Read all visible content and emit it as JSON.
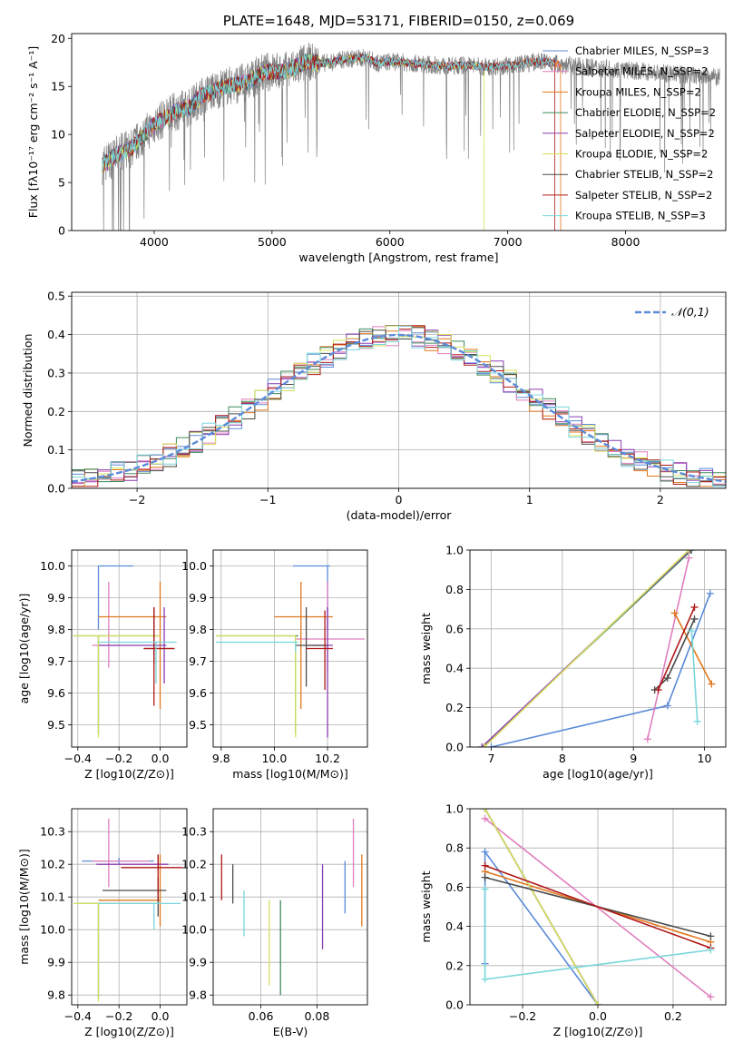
{
  "colors": {
    "miles_chabrier": "#5b8bd9",
    "miles_salpeter": "#e07fbf",
    "miles_kroupa": "#e1771c",
    "elodie_chabrier": "#3d8a5a",
    "elodie_salpeter": "#8a3db4",
    "elodie_kroupa": "#d6e05a",
    "stelib_chabrier": "#4c4c4c",
    "stelib_salpeter": "#b01818",
    "stelib_kroupa": "#7ad6dc",
    "data": "#7f7f7f",
    "normal": "#5b8bd9"
  },
  "chart_data": [
    {
      "id": "spectrum",
      "type": "line",
      "title": "PLATE=1648, MJD=53171, FIBERID=0150, z=0.069",
      "xlabel": "wavelength [Angstrom, rest frame]",
      "ylabel": "Flux [fλ10⁻¹⁷ erg cm⁻² s⁻¹ A⁻¹]",
      "xlim": [
        3300,
        8850
      ],
      "ylim": [
        0,
        20.5
      ],
      "xticks": [
        "4000",
        "5000",
        "6000",
        "7000",
        "8000"
      ],
      "yticks": [
        "0",
        "5",
        "10",
        "15",
        "20"
      ],
      "legend": "upper right",
      "legend_entries": [
        "Chabrier MILES, N_SSP=3",
        "Salpeter MILES, N_SSP=2",
        "Kroupa MILES, N_SSP=2",
        "Chabrier ELODIE, N_SSP=2",
        "Salpeter ELODIE, N_SSP=2",
        "Kroupa ELODIE, N_SSP=2",
        "Chabrier STELIB, N_SSP=2",
        "Salpeter STELIB, N_SSP=2",
        "Kroupa STELIB, N_SSP=3"
      ],
      "envelope": {
        "x": [
          3560,
          3600,
          3700,
          3800,
          3900,
          4000,
          4100,
          4200,
          4300,
          4400,
          4500,
          4600,
          4700,
          4800,
          4900,
          5000,
          5100,
          5200,
          5300,
          5400,
          5500,
          5600,
          5700,
          5800,
          5900,
          6000,
          6100,
          6200,
          6300,
          6400,
          6500,
          6600,
          6700,
          6800,
          6900,
          7000,
          7100,
          7200,
          7300,
          7400,
          7500,
          7600,
          7700,
          7800,
          7900,
          8000,
          8100,
          8200,
          8300,
          8400,
          8500,
          8600,
          8700,
          8800
        ],
        "y": [
          6.8,
          7.2,
          8.0,
          8.5,
          9.8,
          11.0,
          11.8,
          12.5,
          12.8,
          14.0,
          14.5,
          15.0,
          15.2,
          15.5,
          16.3,
          16.6,
          16.5,
          17.0,
          17.6,
          17.4,
          17.5,
          17.8,
          17.9,
          18.0,
          17.4,
          17.6,
          17.5,
          17.4,
          17.3,
          17.2,
          17.1,
          17.2,
          17.2,
          17.0,
          17.1,
          17.2,
          17.3,
          17.5,
          17.6,
          17.4,
          17.2,
          17.1,
          17.0,
          16.9,
          16.8,
          16.7,
          16.6,
          16.5,
          16.4,
          16.3,
          16.2,
          16.1,
          16.0,
          15.9
        ]
      }
    },
    {
      "id": "residuals",
      "type": "step",
      "xlabel": "(data-model)/error",
      "ylabel": "Normed distribution",
      "xlim": [
        -2.5,
        2.5
      ],
      "ylim": [
        0,
        0.51
      ],
      "xticks": [
        "−2",
        "−1",
        "0",
        "1",
        "2"
      ],
      "yticks": [
        "0.0",
        "0.1",
        "0.2",
        "0.3",
        "0.4",
        "0.5"
      ],
      "legend": "upper right",
      "normal_label": "𝒩(0,1)",
      "bin_width": 0.1,
      "bins_start": -2.5
    },
    {
      "id": "age_vs_Z",
      "type": "errorbar",
      "xlabel": "Z [log10(Z/Z⊙)]",
      "ylabel": "age [log10(age/yr)]",
      "xlim": [
        -0.43,
        0.13
      ],
      "ylim": [
        9.43,
        10.05
      ],
      "xticks": [
        "−0.4",
        "−0.2",
        "0.0"
      ],
      "yticks": [
        "9.5",
        "9.6",
        "9.7",
        "9.8",
        "9.9",
        "10.0"
      ],
      "points": [
        {
          "x": -0.3,
          "y": 10.0,
          "xerr": [
            0.0,
            0.17
          ],
          "yerr": [
            0.2,
            0.0
          ],
          "c": "miles_chabrier"
        },
        {
          "x": -0.25,
          "y": 9.75,
          "xerr": [
            0.08,
            0.05
          ],
          "yerr": [
            0.07,
            0.2
          ],
          "c": "miles_salpeter"
        },
        {
          "x": 0.0,
          "y": 9.84,
          "xerr": [
            0.3,
            0.03
          ],
          "yerr": [
            0.29,
            0.11
          ],
          "c": "miles_kroupa"
        },
        {
          "x": -0.3,
          "y": 9.78,
          "xerr": [
            0.12,
            0.29
          ],
          "yerr": [
            0.31,
            0.0
          ],
          "c": "elodie_chabrier"
        },
        {
          "x": 0.02,
          "y": 9.75,
          "xerr": [
            0.32,
            0.01
          ],
          "yerr": [
            0.12,
            0.12
          ],
          "c": "elodie_salpeter"
        },
        {
          "x": -0.3,
          "y": 9.78,
          "xerr": [
            0.12,
            0.3
          ],
          "yerr": [
            0.32,
            0.0
          ],
          "c": "elodie_kroupa"
        },
        {
          "x": -0.03,
          "y": 9.74,
          "xerr": [
            0.05,
            0.1
          ],
          "yerr": [
            0.05,
            0.13
          ],
          "c": "stelib_chabrier"
        },
        {
          "x": -0.03,
          "y": 9.74,
          "xerr": [
            0.05,
            0.1
          ],
          "yerr": [
            0.18,
            0.13
          ],
          "c": "stelib_salpeter"
        },
        {
          "x": -0.02,
          "y": 9.76,
          "xerr": [
            0.28,
            0.1
          ],
          "yerr": [
            0.13,
            0.0
          ],
          "c": "stelib_kroupa"
        }
      ]
    },
    {
      "id": "age_vs_mass",
      "type": "errorbar",
      "xlabel": "mass [log10(M/M⊙)]",
      "ylabel": "",
      "xlim": [
        9.77,
        10.35
      ],
      "ylim": [
        9.43,
        10.05
      ],
      "xticks": [
        "9.8",
        "10.0",
        "10.2"
      ],
      "yticks": [
        "9.5",
        "9.6",
        "9.7",
        "9.8",
        "9.9",
        "10.0"
      ],
      "points": [
        {
          "x": 10.2,
          "y": 10.0,
          "xerr": [
            0.13,
            0.01
          ],
          "yerr": [
            0.2,
            0.0
          ],
          "c": "miles_chabrier"
        },
        {
          "x": 10.2,
          "y": 9.77,
          "xerr": [
            0.12,
            0.14
          ],
          "yerr": [
            0.1,
            0.18
          ],
          "c": "miles_salpeter"
        },
        {
          "x": 10.1,
          "y": 9.84,
          "xerr": [
            0.1,
            0.12
          ],
          "yerr": [
            0.29,
            0.11
          ],
          "c": "miles_kroupa"
        },
        {
          "x": 10.08,
          "y": 9.78,
          "xerr": [
            0.3,
            0.01
          ],
          "yerr": [
            0.31,
            0.0
          ],
          "c": "elodie_chabrier"
        },
        {
          "x": 10.2,
          "y": 9.75,
          "xerr": [
            0.07,
            0.02
          ],
          "yerr": [
            0.29,
            0.12
          ],
          "c": "elodie_salpeter"
        },
        {
          "x": 10.08,
          "y": 9.78,
          "xerr": [
            0.3,
            0.0
          ],
          "yerr": [
            0.32,
            0.0
          ],
          "c": "elodie_kroupa"
        },
        {
          "x": 10.12,
          "y": 9.75,
          "xerr": [
            0.04,
            0.08
          ],
          "yerr": [
            0.13,
            0.12
          ],
          "c": "stelib_chabrier"
        },
        {
          "x": 10.19,
          "y": 9.74,
          "xerr": [
            0.07,
            0.03
          ],
          "yerr": [
            0.13,
            0.12
          ],
          "c": "stelib_salpeter"
        },
        {
          "x": 10.08,
          "y": 9.76,
          "xerr": [
            0.3,
            0.01
          ],
          "yerr": [
            0.03,
            0.0
          ],
          "c": "stelib_kroupa"
        }
      ]
    },
    {
      "id": "mw_vs_age",
      "type": "line",
      "xlabel": "age [log10(age/yr)]",
      "ylabel": "mass weight",
      "xlim": [
        6.7,
        10.3
      ],
      "ylim": [
        0,
        1.0
      ],
      "xticks": [
        "7",
        "8",
        "9",
        "10"
      ],
      "yticks": [
        "0.0",
        "0.2",
        "0.4",
        "0.6",
        "0.8",
        "1.0"
      ],
      "series": [
        {
          "c": "miles_chabrier",
          "x": [
            7.0,
            9.48,
            10.08
          ],
          "y": [
            0.0,
            0.21,
            0.78
          ]
        },
        {
          "c": "miles_salpeter",
          "x": [
            9.2,
            9.78
          ],
          "y": [
            0.04,
            0.96
          ]
        },
        {
          "c": "miles_kroupa",
          "x": [
            9.58,
            10.1
          ],
          "y": [
            0.68,
            0.32
          ]
        },
        {
          "c": "elodie_chabrier",
          "x": [
            6.87,
            9.82
          ],
          "y": [
            0.0,
            1.0
          ]
        },
        {
          "c": "elodie_salpeter",
          "x": [
            6.87,
            9.8
          ],
          "y": [
            0.0,
            1.0
          ]
        },
        {
          "c": "elodie_kroupa",
          "x": [
            6.9,
            9.78
          ],
          "y": [
            0.0,
            1.0
          ]
        },
        {
          "c": "stelib_chabrier",
          "x": [
            9.3,
            9.48,
            9.86
          ],
          "y": [
            0.29,
            0.35,
            0.65
          ]
        },
        {
          "c": "stelib_salpeter",
          "x": [
            9.35,
            9.86
          ],
          "y": [
            0.29,
            0.71
          ]
        },
        {
          "c": "stelib_kroupa",
          "x": [
            9.82,
            9.9
          ],
          "y": [
            0.59,
            0.13
          ]
        }
      ]
    },
    {
      "id": "mass_vs_Z",
      "type": "errorbar",
      "xlabel": "Z [log10(Z/Z⊙)]",
      "ylabel": "mass [log10(M/M⊙)]",
      "xlim": [
        -0.43,
        0.13
      ],
      "ylim": [
        9.77,
        10.37
      ],
      "xticks": [
        "−0.4",
        "−0.2",
        "0.0"
      ],
      "yticks": [
        "9.8",
        "9.9",
        "10.0",
        "10.1",
        "10.2",
        "10.3"
      ],
      "points": [
        {
          "x": -0.2,
          "y": 10.21,
          "xerr": [
            0.18,
            0.17
          ],
          "yerr": [
            0.01,
            0.01
          ],
          "c": "miles_chabrier"
        },
        {
          "x": -0.25,
          "y": 10.21,
          "xerr": [
            0.08,
            0.2
          ],
          "yerr": [
            0.08,
            0.13
          ],
          "c": "miles_salpeter"
        },
        {
          "x": 0.0,
          "y": 10.09,
          "xerr": [
            0.3,
            0.0
          ],
          "yerr": [
            0.08,
            0.14
          ],
          "c": "miles_kroupa"
        },
        {
          "x": -0.3,
          "y": 10.08,
          "xerr": [
            0.1,
            0.29
          ],
          "yerr": [
            0.29,
            0.0
          ],
          "c": "elodie_chabrier"
        },
        {
          "x": -0.01,
          "y": 10.2,
          "xerr": [
            0.3,
            0.05
          ],
          "yerr": [
            0.02,
            0.03
          ],
          "c": "elodie_salpeter"
        },
        {
          "x": -0.3,
          "y": 10.08,
          "xerr": [
            0.12,
            0.29
          ],
          "yerr": [
            0.3,
            0.0
          ],
          "c": "elodie_kroupa"
        },
        {
          "x": -0.01,
          "y": 10.12,
          "xerr": [
            0.27,
            0.04
          ],
          "yerr": [
            0.08,
            0.04
          ],
          "c": "stelib_chabrier"
        },
        {
          "x": -0.01,
          "y": 10.19,
          "xerr": [
            0.18,
            0.12
          ],
          "yerr": [
            0.1,
            0.04
          ],
          "c": "stelib_salpeter"
        },
        {
          "x": -0.03,
          "y": 10.08,
          "xerr": [
            0.27,
            0.13
          ],
          "yerr": [
            0.08,
            0.0
          ],
          "c": "stelib_kroupa"
        }
      ]
    },
    {
      "id": "mass_vs_ebv",
      "type": "errorbar",
      "xlabel": "E(B-V)",
      "ylabel": "",
      "xlim": [
        0.043,
        0.098
      ],
      "ylim": [
        9.77,
        10.37
      ],
      "xticks": [
        "0.06",
        "0.08"
      ],
      "yticks": [
        "9.8",
        "9.9",
        "10.0",
        "10.1",
        "10.2",
        "10.3"
      ],
      "points": [
        {
          "x": 0.09,
          "y": 10.13,
          "yerr": [
            0.08,
            0.08
          ],
          "c": "miles_chabrier"
        },
        {
          "x": 0.093,
          "y": 10.23,
          "yerr": [
            0.1,
            0.11
          ],
          "c": "miles_salpeter"
        },
        {
          "x": 0.096,
          "y": 10.12,
          "yerr": [
            0.11,
            0.11
          ],
          "c": "miles_kroupa"
        },
        {
          "x": 0.067,
          "y": 9.95,
          "yerr": [
            0.15,
            0.14
          ],
          "c": "elodie_chabrier"
        },
        {
          "x": 0.082,
          "y": 10.06,
          "yerr": [
            0.12,
            0.14
          ],
          "c": "elodie_salpeter"
        },
        {
          "x": 0.063,
          "y": 9.96,
          "yerr": [
            0.13,
            0.13
          ],
          "c": "elodie_kroupa"
        },
        {
          "x": 0.05,
          "y": 10.14,
          "yerr": [
            0.06,
            0.06
          ],
          "c": "stelib_chabrier"
        },
        {
          "x": 0.046,
          "y": 10.16,
          "yerr": [
            0.07,
            0.07
          ],
          "c": "stelib_salpeter"
        },
        {
          "x": 0.054,
          "y": 10.05,
          "yerr": [
            0.07,
            0.07
          ],
          "c": "stelib_kroupa"
        }
      ]
    },
    {
      "id": "mw_vs_Z",
      "type": "line",
      "xlabel": "Z [log10(Z/Z⊙)]",
      "ylabel": "mass weight",
      "xlim": [
        -0.34,
        0.34
      ],
      "ylim": [
        0,
        1.0
      ],
      "xticks": [
        "−0.2",
        "0.0",
        "0.2"
      ],
      "yticks": [
        "0.0",
        "0.2",
        "0.4",
        "0.6",
        "0.8",
        "1.0"
      ],
      "series": [
        {
          "c": "miles_chabrier",
          "x": [
            -0.3,
            -0.3,
            0.0
          ],
          "y": [
            0.21,
            0.78,
            0.0
          ]
        },
        {
          "c": "miles_salpeter",
          "x": [
            -0.3,
            0.3
          ],
          "y": [
            0.95,
            0.04
          ]
        },
        {
          "c": "miles_kroupa",
          "x": [
            -0.3,
            0.3
          ],
          "y": [
            0.68,
            0.32
          ]
        },
        {
          "c": "elodie_chabrier",
          "x": [
            -0.3,
            0.0
          ],
          "y": [
            1.0,
            0.0
          ]
        },
        {
          "c": "elodie_salpeter",
          "x": [
            -0.3,
            0.0
          ],
          "y": [
            1.0,
            0.0
          ]
        },
        {
          "c": "elodie_kroupa",
          "x": [
            -0.3,
            0.0
          ],
          "y": [
            1.0,
            0.0
          ]
        },
        {
          "c": "stelib_chabrier",
          "x": [
            -0.3,
            0.3
          ],
          "y": [
            0.65,
            0.35
          ]
        },
        {
          "c": "stelib_salpeter",
          "x": [
            -0.3,
            0.3
          ],
          "y": [
            0.71,
            0.29
          ]
        },
        {
          "c": "stelib_kroupa",
          "x": [
            -0.3,
            -0.3,
            0.3
          ],
          "y": [
            0.59,
            0.13,
            0.28
          ]
        }
      ]
    }
  ]
}
